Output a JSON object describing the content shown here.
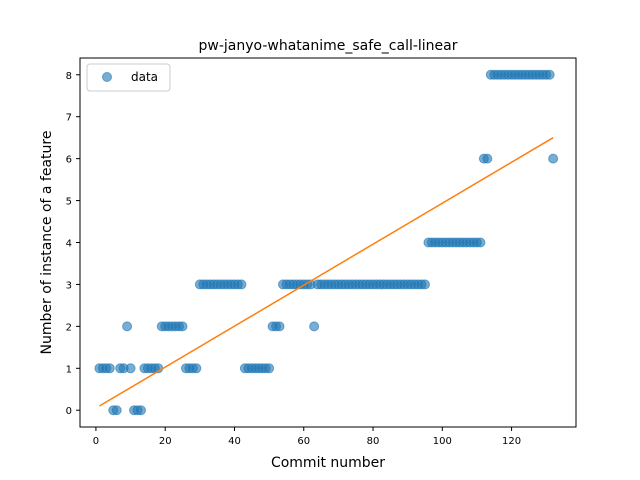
{
  "chart_data": {
    "type": "scatter",
    "title": "pw-janyo-whatanime_safe_call-linear",
    "xlabel": "Commit number",
    "ylabel": "Number of instance of a feature",
    "xlim": [
      -4.6,
      138.6
    ],
    "ylim": [
      -0.4,
      8.4
    ],
    "xticks": [
      0,
      20,
      40,
      60,
      80,
      100,
      120
    ],
    "yticks": [
      0,
      1,
      2,
      3,
      4,
      5,
      6,
      7,
      8
    ],
    "grid": false,
    "legend_position": "upper-left",
    "series": [
      {
        "name": "data",
        "kind": "scatter",
        "color": "#1f77b4",
        "x": [
          1,
          2,
          3,
          4,
          5,
          6,
          7,
          8,
          9,
          10,
          11,
          12,
          13,
          14,
          15,
          16,
          17,
          18,
          19,
          20,
          21,
          22,
          23,
          24,
          25,
          26,
          27,
          28,
          29,
          30,
          31,
          32,
          33,
          34,
          35,
          36,
          37,
          38,
          39,
          40,
          41,
          42,
          43,
          44,
          45,
          46,
          47,
          48,
          49,
          50,
          51,
          52,
          53,
          54,
          55,
          56,
          57,
          58,
          59,
          60,
          61,
          62,
          63,
          64,
          65,
          66,
          67,
          68,
          69,
          70,
          71,
          72,
          73,
          74,
          75,
          76,
          77,
          78,
          79,
          80,
          81,
          82,
          83,
          84,
          85,
          86,
          87,
          88,
          89,
          90,
          91,
          92,
          93,
          94,
          95,
          96,
          97,
          98,
          99,
          100,
          101,
          102,
          103,
          104,
          105,
          106,
          107,
          108,
          109,
          110,
          111,
          112,
          113,
          114,
          115,
          116,
          117,
          118,
          119,
          120,
          121,
          122,
          123,
          124,
          125,
          126,
          127,
          128,
          129,
          130,
          131,
          132
        ],
        "y": [
          1,
          1,
          1,
          1,
          0,
          0,
          1,
          1,
          2,
          1,
          0,
          0,
          0,
          1,
          1,
          1,
          1,
          1,
          2,
          2,
          2,
          2,
          2,
          2,
          2,
          1,
          1,
          1,
          1,
          3,
          3,
          3,
          3,
          3,
          3,
          3,
          3,
          3,
          3,
          3,
          3,
          3,
          1,
          1,
          1,
          1,
          1,
          1,
          1,
          1,
          2,
          2,
          2,
          3,
          3,
          3,
          3,
          3,
          3,
          3,
          3,
          3,
          2,
          3,
          3,
          3,
          3,
          3,
          3,
          3,
          3,
          3,
          3,
          3,
          3,
          3,
          3,
          3,
          3,
          3,
          3,
          3,
          3,
          3,
          3,
          3,
          3,
          3,
          3,
          3,
          3,
          3,
          3,
          3,
          3,
          4,
          4,
          4,
          4,
          4,
          4,
          4,
          4,
          4,
          4,
          4,
          4,
          4,
          4,
          4,
          4,
          6,
          6,
          8,
          8,
          8,
          8,
          8,
          8,
          8,
          8,
          8,
          8,
          8,
          8,
          8,
          8,
          8,
          8,
          8,
          8,
          6
        ]
      },
      {
        "name": "",
        "kind": "line",
        "color": "#ff7f0e",
        "x": [
          1,
          132
        ],
        "y": [
          0.1,
          6.5
        ]
      }
    ]
  }
}
